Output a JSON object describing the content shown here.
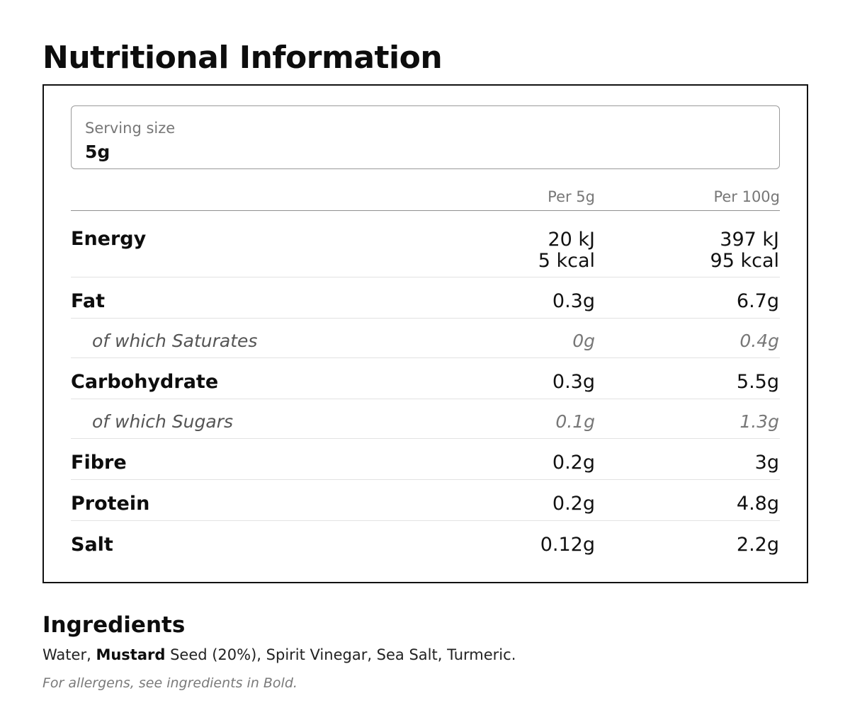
{
  "title": "Nutritional Information",
  "serving": {
    "label": "Serving size",
    "value": "5g"
  },
  "columns": {
    "per_serving": "Per 5g",
    "per_100g": "Per 100g"
  },
  "rows": {
    "energy": {
      "label": "Energy",
      "per_serving": [
        "20 kJ",
        "5 kcal"
      ],
      "per_100g": [
        "397 kJ",
        "95 kcal"
      ]
    },
    "fat": {
      "label": "Fat",
      "per_serving": "0.3g",
      "per_100g": "6.7g"
    },
    "saturates": {
      "label": "of which Saturates",
      "per_serving": "0g",
      "per_100g": "0.4g"
    },
    "carbohydrate": {
      "label": "Carbohydrate",
      "per_serving": "0.3g",
      "per_100g": "5.5g"
    },
    "sugars": {
      "label": "of which Sugars",
      "per_serving": "0.1g",
      "per_100g": "1.3g"
    },
    "fibre": {
      "label": "Fibre",
      "per_serving": "0.2g",
      "per_100g": "3g"
    },
    "protein": {
      "label": "Protein",
      "per_serving": "0.2g",
      "per_100g": "4.8g"
    },
    "salt": {
      "label": "Salt",
      "per_serving": "0.12g",
      "per_100g": "2.2g"
    }
  },
  "ingredients": {
    "title": "Ingredients",
    "before_allergen": "Water, ",
    "allergen": "Mustard",
    "after_allergen": " Seed (20%), Spirit Vinegar, Sea Salt, Turmeric.",
    "allergen_note": "For allergens, see ingredients in Bold."
  }
}
